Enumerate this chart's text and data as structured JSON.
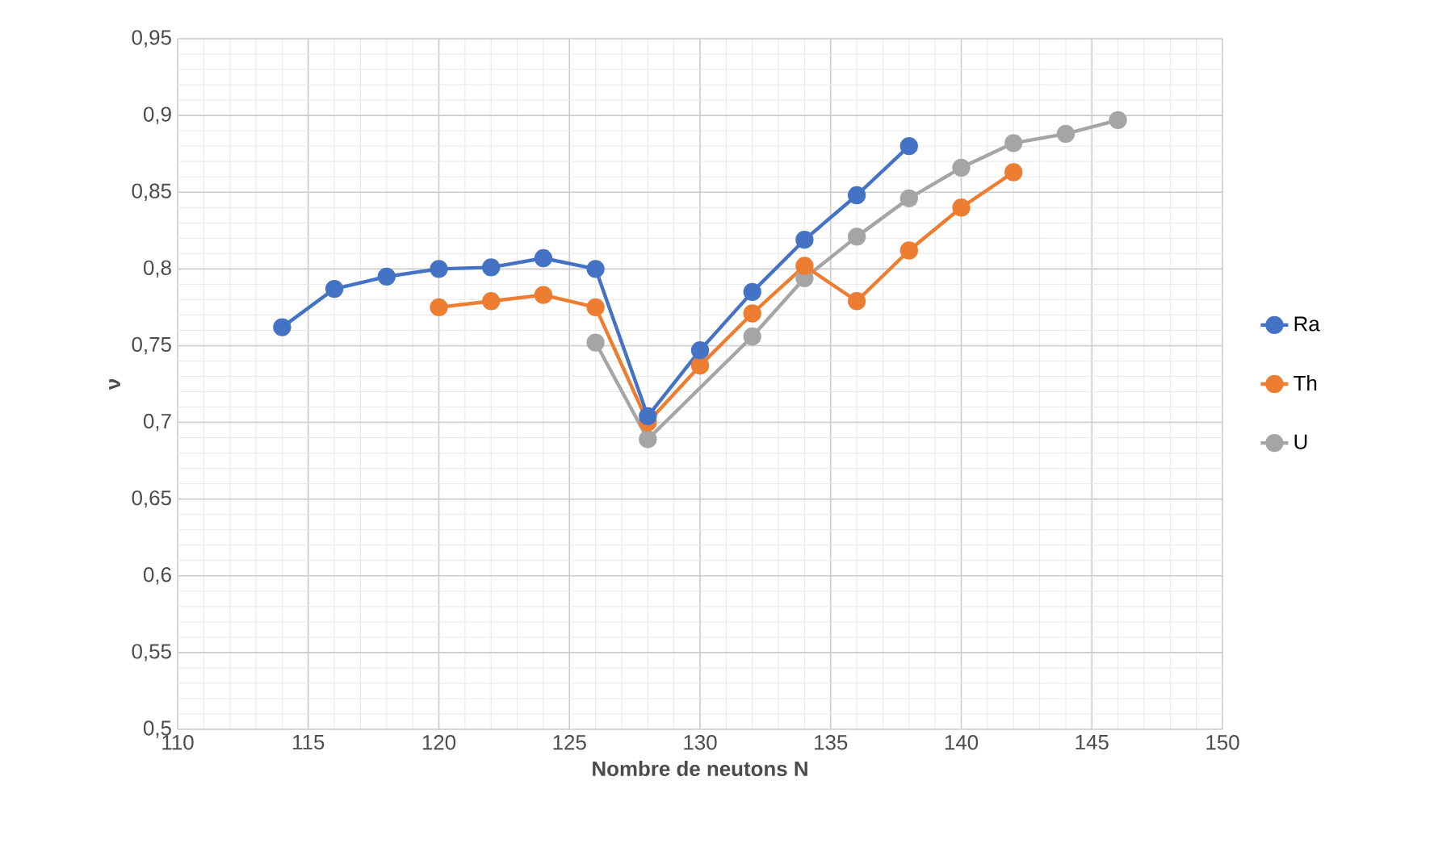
{
  "chart_data": {
    "type": "line",
    "xlabel": "Nombre de neutons N",
    "ylabel": "ν",
    "xlim": [
      110,
      150
    ],
    "xticks": [
      110,
      115,
      120,
      125,
      130,
      135,
      140,
      145,
      150
    ],
    "ylim": [
      0.5,
      0.95
    ],
    "yticks": [
      {
        "value": 0.5,
        "label": "0,5"
      },
      {
        "value": 0.55,
        "label": "0,55"
      },
      {
        "value": 0.6,
        "label": "0,6"
      },
      {
        "value": 0.65,
        "label": "0,65"
      },
      {
        "value": 0.7,
        "label": "0,7"
      },
      {
        "value": 0.75,
        "label": "0,75"
      },
      {
        "value": 0.8,
        "label": "0,8"
      },
      {
        "value": 0.85,
        "label": "0,85"
      },
      {
        "value": 0.9,
        "label": "0,9"
      },
      {
        "value": 0.95,
        "label": "0,95"
      }
    ],
    "grid": true,
    "legend": "right",
    "marker": "circle",
    "line_style": "solid",
    "series": [
      {
        "name": "Ra",
        "color": "#4472c4",
        "x": [
          114,
          116,
          118,
          120,
          122,
          124,
          126,
          128,
          130,
          132,
          134,
          136,
          138
        ],
        "values": [
          0.762,
          0.787,
          0.795,
          0.8,
          0.801,
          0.807,
          0.8,
          0.704,
          0.747,
          0.785,
          0.819,
          0.848,
          0.88
        ]
      },
      {
        "name": "Th",
        "color": "#ed7d31",
        "x": [
          120,
          122,
          124,
          126,
          128,
          130,
          132,
          134,
          136,
          138,
          140,
          142
        ],
        "values": [
          0.775,
          0.779,
          0.783,
          0.775,
          0.7,
          0.737,
          0.771,
          0.802,
          0.779,
          0.812,
          0.84,
          0.863
        ]
      },
      {
        "name": "U",
        "color": "#a5a5a5",
        "x": [
          126,
          128,
          132,
          134,
          136,
          138,
          140,
          142,
          144,
          146
        ],
        "values": [
          0.752,
          0.689,
          0.756,
          0.794,
          0.821,
          0.846,
          0.866,
          0.882,
          0.888,
          0.897
        ]
      }
    ]
  }
}
